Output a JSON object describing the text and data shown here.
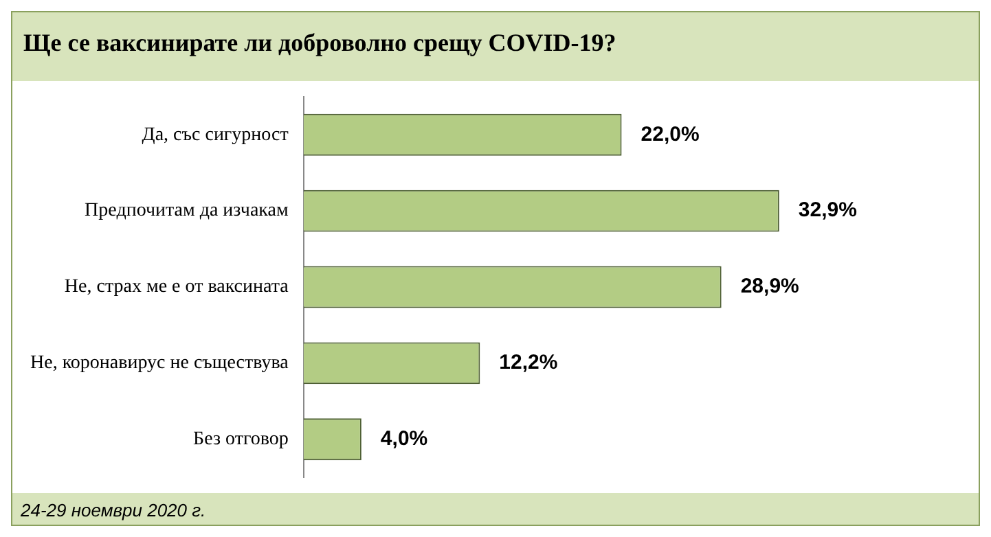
{
  "chart_data": {
    "type": "bar",
    "orientation": "horizontal",
    "title": "Ще се ваксинирате ли доброволно срещу COVID-19?",
    "categories": [
      "Да, със сигурност",
      "Предпочитам да изчакам",
      "Не, страх ме е от ваксината",
      "Не, коронавирус не съществува",
      "Без отговор"
    ],
    "values": [
      22.0,
      32.9,
      28.9,
      12.2,
      4.0
    ],
    "value_labels": [
      "22,0%",
      "32,9%",
      "28,9%",
      "12,2%",
      "4,0%"
    ],
    "color": "#b3cc84",
    "grid": false,
    "legend": false,
    "annotations": [
      "24-29 ноември 2020 г."
    ]
  }
}
